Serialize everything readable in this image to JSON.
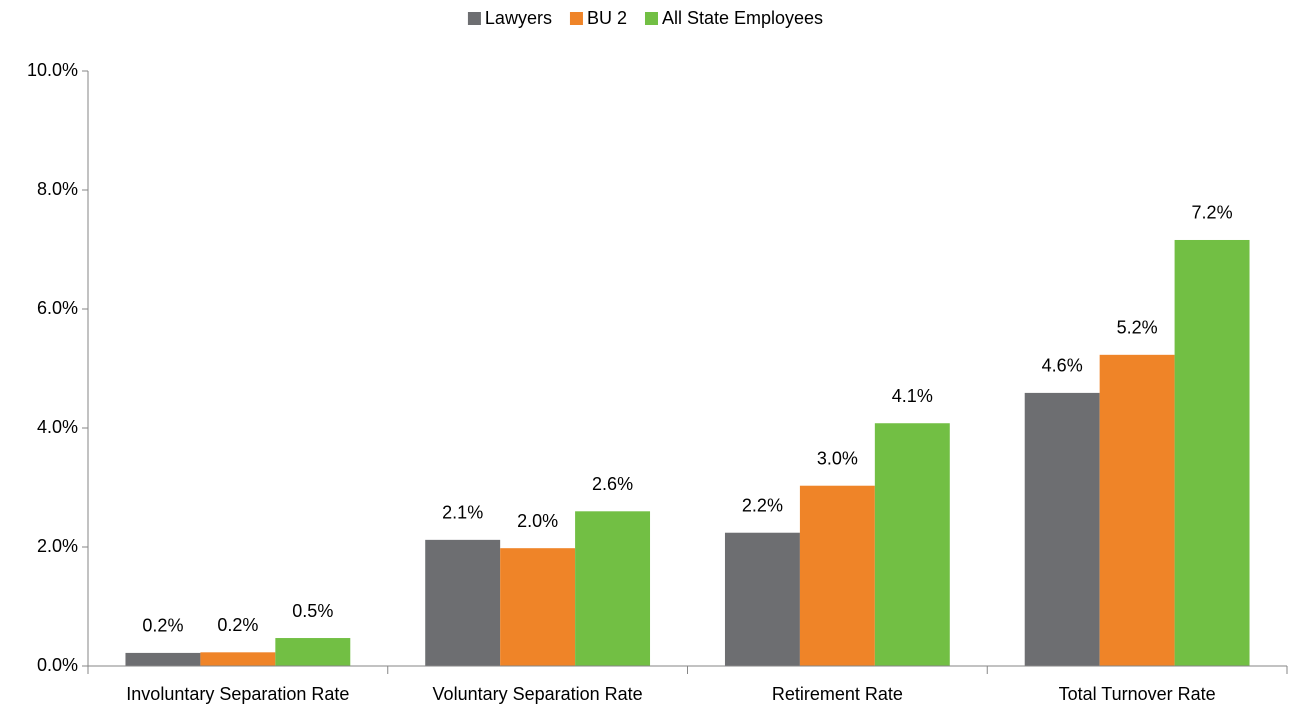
{
  "chart_data": {
    "type": "bar",
    "categories": [
      "Involuntary Separation Rate",
      "Voluntary Separation Rate",
      "Retirement Rate",
      "Total Turnover Rate"
    ],
    "series": [
      {
        "name": "Lawyers",
        "color": "#6d6e71",
        "values": [
          0.22,
          2.12,
          2.24,
          4.59
        ],
        "value_labels": [
          "0.2%",
          "2.1%",
          "2.2%",
          "4.6%"
        ]
      },
      {
        "name": "BU 2",
        "color": "#ef8428",
        "values": [
          0.23,
          1.98,
          3.03,
          5.23
        ],
        "value_labels": [
          "0.2%",
          "2.0%",
          "3.0%",
          "5.2%"
        ]
      },
      {
        "name": "All State Employees",
        "color": "#72bf44",
        "values": [
          0.47,
          2.6,
          4.08,
          7.16
        ],
        "value_labels": [
          "0.5%",
          "2.6%",
          "4.1%",
          "7.2%"
        ]
      }
    ],
    "ylim": [
      0,
      10
    ],
    "yticks": [
      {
        "value": 0,
        "label": "0.0%"
      },
      {
        "value": 2,
        "label": "2.0%"
      },
      {
        "value": 4,
        "label": "4.0%"
      },
      {
        "value": 6,
        "label": "6.0%"
      },
      {
        "value": 8,
        "label": "8.0%"
      },
      {
        "value": 10,
        "label": "10.0%"
      }
    ],
    "legend": "top",
    "grid": false
  }
}
